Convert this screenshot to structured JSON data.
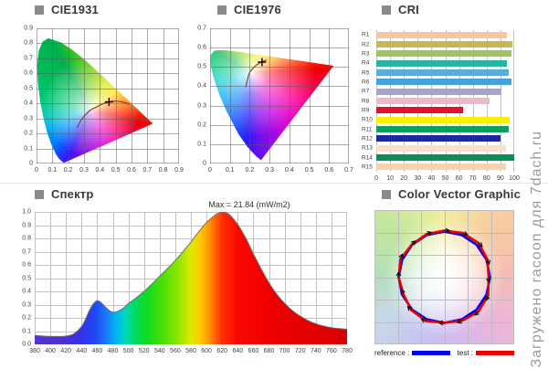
{
  "watermark": "Загружено racoon для 7dach.ru",
  "legend": {
    "reference_label": "reference :",
    "test_label": "test :"
  },
  "colors": {
    "reference": "#0000ee",
    "test": "#ee0000",
    "grid_under": "#c3c3c3",
    "grid_over": "rgba(90,90,90,0.5)",
    "locus_curve": "#8a4038",
    "cross": "#000000",
    "spectrum_outline": "#6f6f6f",
    "cvg_grid": "#bcbcbc",
    "watermark": "#9b9b9b"
  },
  "chart_data": [
    {
      "id": "cie1931",
      "type": "chromaticity-diagram",
      "title": "CIE1931",
      "xlim": [
        0,
        0.9
      ],
      "ylim": [
        0,
        0.9
      ],
      "xticks": [
        "0",
        "0.1",
        "0.2",
        "0.3",
        "0.4",
        "0.5",
        "0.6",
        "0.7",
        "0.8",
        "0.9"
      ],
      "yticks": [
        "0",
        "0.1",
        "0.2",
        "0.3",
        "0.4",
        "0.5",
        "0.6",
        "0.7",
        "0.8",
        "0.9"
      ],
      "measured_point": {
        "x": 0.458,
        "y": 0.41
      },
      "planckian_locus": [
        [
          0.255,
          0.236
        ],
        [
          0.281,
          0.288
        ],
        [
          0.313,
          0.329
        ],
        [
          0.347,
          0.36
        ],
        [
          0.381,
          0.377
        ],
        [
          0.405,
          0.391
        ],
        [
          0.437,
          0.404
        ],
        [
          0.458,
          0.41
        ],
        [
          0.477,
          0.414
        ],
        [
          0.502,
          0.415
        ],
        [
          0.527,
          0.413
        ],
        [
          0.549,
          0.408
        ],
        [
          0.57,
          0.401
        ],
        [
          0.586,
          0.393
        ]
      ],
      "spectral_locus": [
        [
          0.1741,
          0.005
        ],
        [
          0.1666,
          0.0086
        ],
        [
          0.1644,
          0.0109
        ],
        [
          0.1566,
          0.0177
        ],
        [
          0.144,
          0.0297
        ],
        [
          0.1241,
          0.0578
        ],
        [
          0.0913,
          0.1327
        ],
        [
          0.0687,
          0.2007
        ],
        [
          0.0454,
          0.295
        ],
        [
          0.0235,
          0.4127
        ],
        [
          0.0082,
          0.5384
        ],
        [
          0.0039,
          0.6548
        ],
        [
          0.0139,
          0.7502
        ],
        [
          0.0389,
          0.812
        ],
        [
          0.0743,
          0.8338
        ],
        [
          0.1547,
          0.8059
        ],
        [
          0.2296,
          0.7543
        ],
        [
          0.3016,
          0.6923
        ],
        [
          0.3731,
          0.6245
        ],
        [
          0.4441,
          0.5547
        ],
        [
          0.5125,
          0.4866
        ],
        [
          0.5752,
          0.4242
        ],
        [
          0.627,
          0.3725
        ],
        [
          0.6658,
          0.334
        ],
        [
          0.6915,
          0.3083
        ],
        [
          0.714,
          0.2859
        ],
        [
          0.7347,
          0.2653
        ]
      ]
    },
    {
      "id": "cie1976",
      "type": "chromaticity-diagram",
      "title": "CIE1976",
      "xlim": [
        0,
        0.7
      ],
      "ylim": [
        0,
        0.7
      ],
      "xticks": [
        "0",
        "0.1",
        "0.2",
        "0.3",
        "0.4",
        "0.5",
        "0.6",
        "0.7"
      ],
      "yticks": [
        "0",
        "0.1",
        "0.2",
        "0.3",
        "0.4",
        "0.5",
        "0.6",
        "0.7"
      ],
      "measured_point": {
        "x": 0.262,
        "y": 0.525
      },
      "planckian_locus": [
        [
          0.18,
          0.395
        ],
        [
          0.19,
          0.44
        ],
        [
          0.198,
          0.468
        ],
        [
          0.211,
          0.487
        ],
        [
          0.225,
          0.502
        ],
        [
          0.238,
          0.513
        ],
        [
          0.251,
          0.521
        ],
        [
          0.261,
          0.527
        ],
        [
          0.272,
          0.531
        ],
        [
          0.285,
          0.536
        ]
      ],
      "spectral_locus": [
        [
          0.257,
          0.017
        ],
        [
          0.235,
          0.035
        ],
        [
          0.216,
          0.055
        ],
        [
          0.188,
          0.087
        ],
        [
          0.144,
          0.151
        ],
        [
          0.083,
          0.271
        ],
        [
          0.052,
          0.343
        ],
        [
          0.028,
          0.412
        ],
        [
          0.012,
          0.47
        ],
        [
          0.003,
          0.513
        ],
        [
          0.001,
          0.543
        ],
        [
          0.005,
          0.564
        ],
        [
          0.023,
          0.584
        ],
        [
          0.05,
          0.587
        ],
        [
          0.079,
          0.586
        ],
        [
          0.113,
          0.582
        ],
        [
          0.153,
          0.577
        ],
        [
          0.203,
          0.569
        ],
        [
          0.262,
          0.56
        ],
        [
          0.332,
          0.55
        ],
        [
          0.403,
          0.539
        ],
        [
          0.469,
          0.53
        ],
        [
          0.52,
          0.522
        ],
        [
          0.623,
          0.506
        ]
      ]
    },
    {
      "id": "cri",
      "type": "bar",
      "title": "CRI",
      "categories": [
        "R1",
        "R2",
        "R3",
        "R4",
        "R5",
        "R6",
        "R7",
        "R8",
        "R9",
        "R10",
        "R11",
        "R12",
        "R13",
        "R14",
        "R15"
      ],
      "values": [
        95,
        99,
        98,
        95,
        96,
        98,
        91,
        82,
        63,
        97,
        96,
        90,
        94,
        100,
        94
      ],
      "bar_colors": [
        "#f6c7a0",
        "#c7b654",
        "#9cc75e",
        "#29b4a2",
        "#59acdc",
        "#4aa0d8",
        "#a8a2d2",
        "#f0b6ca",
        "#e5102e",
        "#fdf000",
        "#0f9e5f",
        "#1c27a0",
        "#fae0c6",
        "#0d8e58",
        "#f6d3ab"
      ],
      "xlim": [
        0,
        100
      ],
      "xticks": [
        "0",
        "10",
        "20",
        "30",
        "40",
        "50",
        "60",
        "70",
        "80",
        "90",
        "100"
      ]
    },
    {
      "id": "spectrum",
      "type": "area",
      "title": "Спектр",
      "annotation": "Max = 21.84 (mW/m2)",
      "xlim": [
        380,
        780
      ],
      "ylim": [
        0,
        1
      ],
      "xticks": [
        "380",
        "400",
        "420",
        "440",
        "460",
        "480",
        "500",
        "520",
        "540",
        "560",
        "580",
        "600",
        "620",
        "640",
        "660",
        "680",
        "700",
        "720",
        "740",
        "760",
        "780"
      ],
      "yticks": [
        "0.0",
        "0.1",
        "0.2",
        "0.3",
        "0.4",
        "0.5",
        "0.6",
        "0.7",
        "0.8",
        "0.9",
        "1.0"
      ],
      "x": [
        380,
        390,
        400,
        410,
        420,
        430,
        440,
        445,
        450,
        455,
        460,
        465,
        470,
        475,
        480,
        485,
        490,
        495,
        500,
        510,
        520,
        530,
        540,
        550,
        560,
        570,
        580,
        590,
        600,
        610,
        615,
        620,
        625,
        630,
        640,
        650,
        660,
        670,
        680,
        690,
        700,
        710,
        720,
        730,
        740,
        750,
        760,
        770,
        780
      ],
      "y": [
        0.068,
        0.063,
        0.06,
        0.059,
        0.062,
        0.08,
        0.135,
        0.19,
        0.255,
        0.305,
        0.33,
        0.315,
        0.285,
        0.258,
        0.243,
        0.246,
        0.26,
        0.28,
        0.308,
        0.352,
        0.4,
        0.455,
        0.515,
        0.572,
        0.633,
        0.7,
        0.772,
        0.85,
        0.92,
        0.972,
        0.99,
        1.0,
        0.995,
        0.975,
        0.905,
        0.805,
        0.685,
        0.57,
        0.465,
        0.378,
        0.31,
        0.255,
        0.213,
        0.18,
        0.155,
        0.138,
        0.126,
        0.119,
        0.114
      ]
    },
    {
      "id": "cvg",
      "type": "radar",
      "title": "Color Vector Graphic",
      "points": 16,
      "series": [
        {
          "name": "reference",
          "radii": [
            50,
            50,
            50,
            50,
            50,
            50,
            50,
            50,
            50,
            50,
            50,
            50,
            50,
            50,
            50,
            50
          ]
        },
        {
          "name": "test",
          "radii": [
            51,
            52.5,
            53,
            51,
            48.5,
            52,
            53,
            51.5,
            50,
            52,
            51,
            48.5,
            50,
            52,
            50.5,
            51
          ]
        }
      ]
    }
  ]
}
